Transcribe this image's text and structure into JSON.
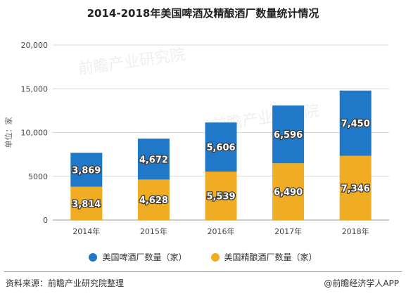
{
  "title": "2014-2018年美国啤酒及精酿酒厂数量统计情况",
  "watermark": "前瞻产业研究院",
  "source": "资料来源：前瞻产业研究院整理",
  "brand": "@前瞻经济学人APP",
  "colors": {
    "beer": "#1f78c8",
    "craft": "#f0ac22",
    "grid": "#d9d9d9"
  },
  "chart_data": {
    "type": "bar",
    "stacked": true,
    "categories": [
      "2014年",
      "2015年",
      "2016年",
      "2017年",
      "2018年"
    ],
    "series": [
      {
        "name": "美国精酿酒厂数量（家）",
        "values": [
          3814,
          4628,
          5539,
          6490,
          7346
        ],
        "labels": [
          "3,814",
          "4,628",
          "5,539",
          "6,490",
          "7,346"
        ]
      },
      {
        "name": "美国啤酒厂数量（家）",
        "values": [
          3869,
          4672,
          5606,
          6596,
          7450
        ],
        "labels": [
          "3,869",
          "4,672",
          "5,606",
          "6,596",
          "7,450"
        ]
      }
    ],
    "ylabel": "单位：家",
    "ylim": [
      0,
      20000
    ],
    "yticks": [
      0,
      5000,
      10000,
      15000,
      20000
    ],
    "ytick_labels": [
      "0",
      "5000",
      "10,000",
      "15,000",
      "20,000"
    ],
    "grid": true,
    "legend": "bottom"
  }
}
